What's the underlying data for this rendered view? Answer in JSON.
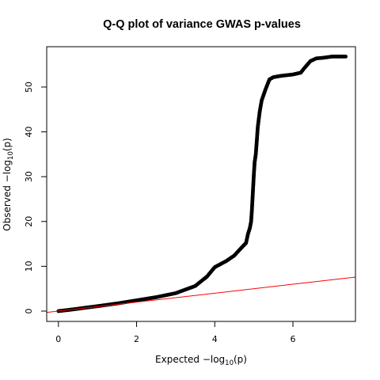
{
  "chart_data": {
    "type": "scatter",
    "title": "Q-Q plot of variance GWAS p-values",
    "xlabel": {
      "prefix": "Expected  −log",
      "sub": "10",
      "suffix": "(p)"
    },
    "ylabel": {
      "prefix": "Observed  −log",
      "sub": "10",
      "suffix": "(p)"
    },
    "xlim": [
      -0.3,
      7.6
    ],
    "ylim": [
      -2.3,
      59.0
    ],
    "xticks": [
      0,
      2,
      4,
      6
    ],
    "yticks": [
      0,
      10,
      20,
      30,
      40,
      50
    ],
    "grid": false,
    "reference_line": {
      "slope": 1,
      "intercept": 0,
      "color": "#ff0000"
    },
    "point_color": "#000000",
    "points": [
      [
        0.0,
        0.0
      ],
      [
        0.3,
        0.3
      ],
      [
        0.6,
        0.65
      ],
      [
        1.0,
        1.1
      ],
      [
        1.5,
        1.7
      ],
      [
        2.0,
        2.4
      ],
      [
        2.5,
        3.1
      ],
      [
        3.0,
        4.0
      ],
      [
        3.5,
        5.6
      ],
      [
        3.8,
        7.7
      ],
      [
        4.0,
        9.8
      ],
      [
        4.3,
        11.2
      ],
      [
        4.5,
        12.4
      ],
      [
        4.7,
        14.3
      ],
      [
        4.8,
        15.2
      ],
      [
        4.85,
        17.2
      ],
      [
        4.9,
        18.6
      ],
      [
        4.93,
        20.0
      ],
      [
        4.95,
        22.5
      ],
      [
        5.0,
        30.5
      ],
      [
        5.02,
        33.2
      ],
      [
        5.05,
        35.0
      ],
      [
        5.08,
        38.5
      ],
      [
        5.1,
        41.0
      ],
      [
        5.15,
        44.5
      ],
      [
        5.2,
        47.0
      ],
      [
        5.3,
        49.5
      ],
      [
        5.4,
        51.7
      ],
      [
        5.5,
        52.2
      ],
      [
        5.7,
        52.5
      ],
      [
        6.0,
        52.8
      ],
      [
        6.2,
        53.2
      ],
      [
        6.3,
        54.3
      ],
      [
        6.45,
        55.8
      ],
      [
        6.6,
        56.4
      ],
      [
        6.75,
        56.5
      ],
      [
        7.0,
        56.8
      ],
      [
        7.35,
        56.8
      ]
    ]
  }
}
